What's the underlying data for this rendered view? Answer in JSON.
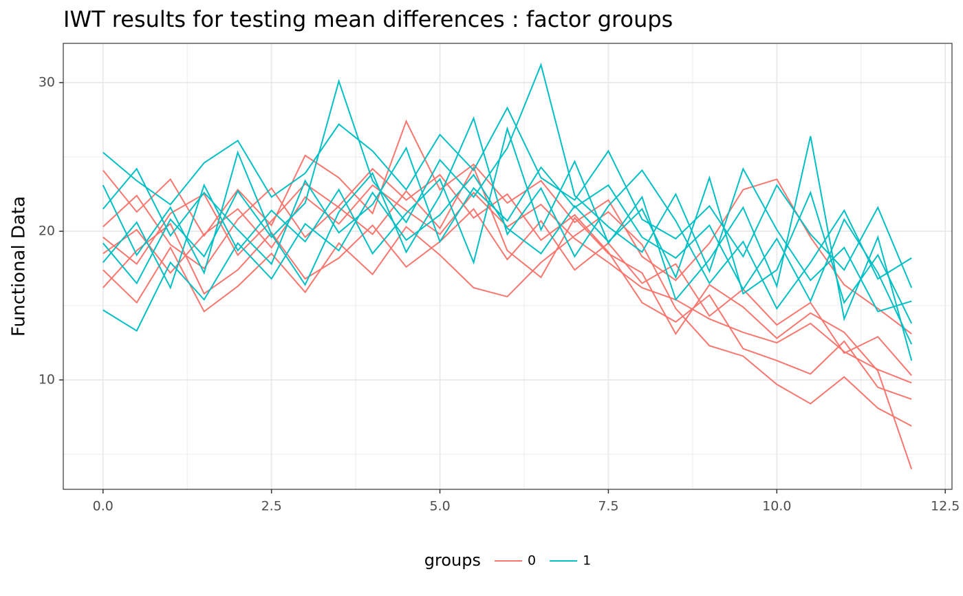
{
  "chart_data": {
    "type": "line",
    "title": "IWT results for testing mean differences : factor groups",
    "y_label": "Functional Data",
    "legend_title": "groups",
    "legend_position": "bottom",
    "grid": true,
    "xlim": [
      -0.59,
      12.6
    ],
    "ylim": [
      2.64,
      32.64
    ],
    "xticks": [
      {
        "value": 0,
        "label": "0.0"
      },
      2.5,
      {
        "value": 5,
        "label": "5.0"
      },
      7.5,
      {
        "value": 10,
        "label": "10.0"
      },
      12.5
    ],
    "yticks": [
      10,
      20,
      30
    ],
    "x_minor_grid": [
      1.25,
      3.75,
      6.25,
      8.75,
      11.25
    ],
    "y_minor_grid": [
      5,
      15,
      25
    ],
    "x": [
      0,
      0.5,
      1,
      1.5,
      2,
      2.5,
      3,
      3.5,
      4,
      4.5,
      5,
      5.5,
      6,
      6.5,
      7,
      7.5,
      8,
      8.5,
      9,
      9.5,
      10,
      10.5,
      11,
      11.5,
      12
    ],
    "series": [
      {
        "name": "0",
        "color": "#f8766d",
        "curves": [
          [
            18.5,
            20.1,
            17.2,
            19.8,
            21.5,
            18.9,
            22.3,
            20.5,
            23.1,
            21.4,
            19.8,
            22.6,
            20.3,
            21.8,
            19.5,
            17.9,
            16.2,
            15.4,
            14.1,
            13.2,
            12.5,
            13.8,
            11.9,
            10.7,
            9.8
          ],
          [
            20.3,
            22.4,
            19.1,
            17.5,
            20.8,
            22.9,
            19.6,
            21.7,
            24.2,
            22.1,
            23.8,
            20.9,
            22.5,
            19.4,
            21.1,
            18.6,
            15.2,
            13.9,
            15.7,
            12.1,
            11.3,
            10.4,
            12.6,
            9.5,
            8.7
          ],
          [
            16.2,
            18.7,
            20.5,
            15.8,
            17.4,
            19.9,
            16.8,
            18.2,
            20.4,
            17.6,
            19.3,
            21.5,
            18.1,
            20.7,
            17.4,
            19.2,
            16.5,
            17.8,
            14.3,
            16.1,
            13.7,
            15.2,
            11.8,
            12.9,
            10.3
          ],
          [
            24.1,
            21.3,
            23.5,
            19.7,
            22.8,
            20.4,
            25.1,
            23.6,
            21.2,
            27.4,
            22.8,
            24.5,
            21.9,
            23.4,
            20.6,
            22.1,
            18.3,
            16.7,
            19.2,
            22.8,
            23.5,
            19.6,
            16.4,
            14.8,
            13.1
          ],
          [
            17.4,
            15.2,
            18.9,
            14.6,
            16.3,
            18.5,
            15.9,
            19.2,
            17.1,
            20.3,
            18.4,
            16.2,
            15.6,
            17.9,
            19.7,
            21.3,
            19.1,
            14.8,
            12.3,
            11.6,
            9.7,
            8.4,
            10.2,
            8.1,
            6.9
          ],
          [
            19.6,
            17.8,
            21.2,
            22.5,
            18.4,
            20.7,
            23.2,
            21.6,
            19.8,
            22.7,
            20.2,
            24.3,
            18.7,
            16.9,
            20.9,
            18.5,
            17.2,
            13.1,
            16.4,
            14.9,
            12.8,
            14.5,
            13.2,
            10.6,
            4.0
          ]
        ]
      },
      {
        "name": "1",
        "color": "#00bfc4",
        "curves": [
          [
            25.3,
            23.4,
            21.8,
            24.6,
            26.1,
            22.3,
            23.9,
            27.2,
            25.4,
            22.8,
            26.5,
            24.1,
            28.3,
            23.6,
            22.1,
            25.4,
            20.8,
            19.5,
            21.7,
            18.3,
            23.1,
            19.8,
            17.4,
            21.6,
            16.2
          ],
          [
            19.2,
            16.5,
            20.8,
            18.3,
            22.7,
            19.6,
            21.9,
            30.1,
            23.4,
            20.6,
            24.8,
            22.3,
            25.6,
            31.2,
            22.4,
            20.3,
            18.6,
            22.5,
            17.3,
            24.2,
            20.1,
            16.7,
            18.9,
            14.6,
            15.3
          ],
          [
            14.7,
            13.3,
            17.9,
            15.4,
            19.2,
            16.8,
            20.5,
            18.7,
            22.6,
            19.4,
            21.1,
            23.8,
            20.2,
            18.5,
            21.7,
            19.3,
            21.5,
            16.9,
            23.6,
            15.8,
            17.4,
            22.6,
            15.2,
            18.4,
            13.8
          ],
          [
            21.5,
            24.2,
            19.7,
            22.6,
            20.1,
            17.8,
            23.4,
            19.9,
            21.8,
            25.6,
            19.3,
            22.9,
            20.7,
            24.3,
            21.6,
            23.1,
            19.6,
            18.2,
            20.4,
            16.1,
            19.5,
            15.3,
            20.8,
            17.2,
            12.4
          ],
          [
            17.9,
            20.6,
            16.2,
            23.1,
            18.7,
            21.4,
            19.3,
            22.8,
            18.5,
            21.2,
            23.5,
            17.9,
            26.9,
            20.1,
            24.7,
            19.2,
            22.3,
            15.4,
            18.1,
            21.6,
            16.3,
            26.4,
            14.1,
            19.6,
            11.3
          ],
          [
            23.1,
            18.4,
            21.6,
            17.2,
            25.3,
            19.8,
            16.4,
            21.3,
            23.9,
            18.6,
            22.4,
            27.6,
            19.8,
            22.9,
            18.3,
            21.7,
            24.1,
            20.7,
            16.5,
            19.3,
            14.8,
            17.9,
            21.4,
            16.8,
            18.2
          ]
        ]
      }
    ]
  }
}
